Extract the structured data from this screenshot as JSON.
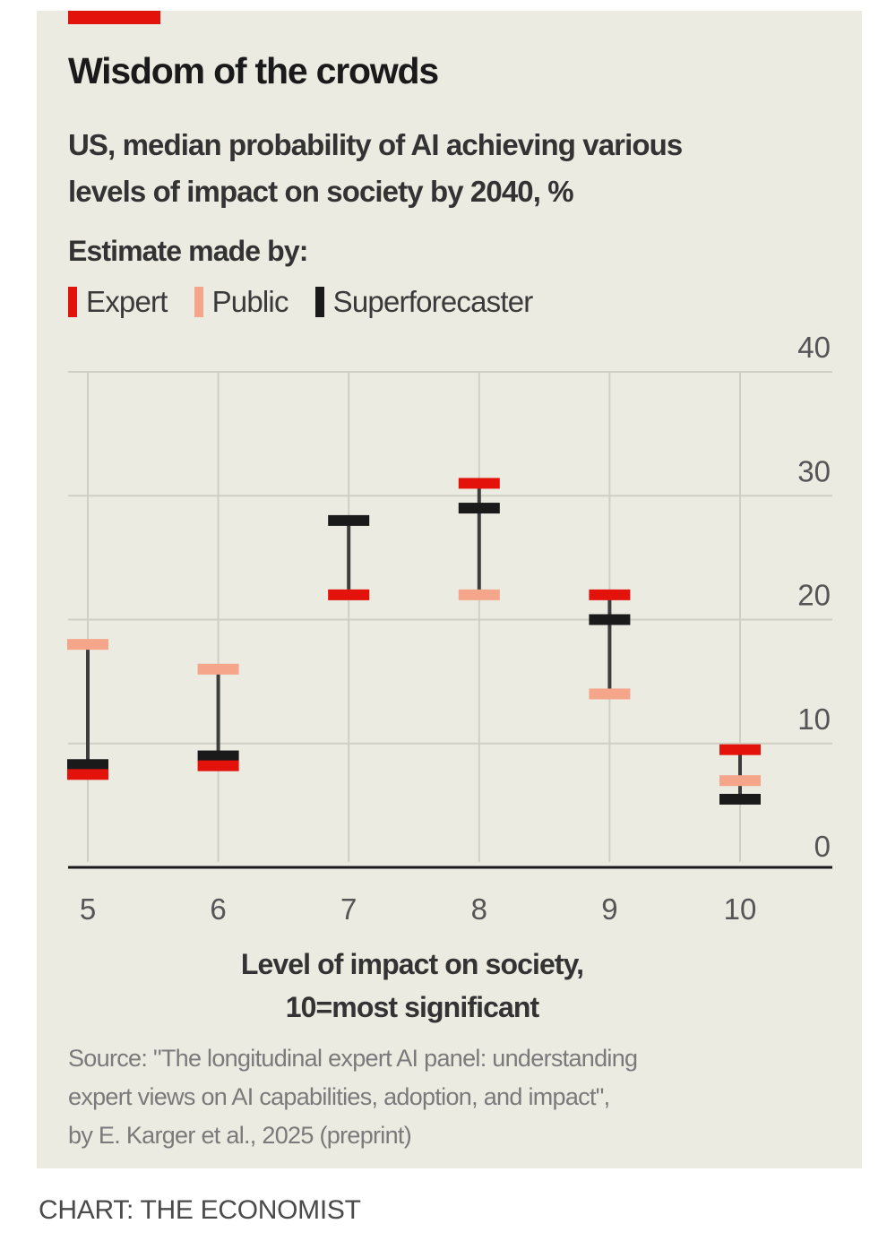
{
  "header": {
    "title": "Wisdom of the crowds",
    "subtitle_line1": "US, median probability of AI achieving various",
    "subtitle_line2": "levels of impact on society by 2040, %",
    "accent_color": "#e3120b"
  },
  "legend": {
    "title": "Estimate made by:",
    "items": [
      {
        "label": "Expert",
        "color": "#e3120b"
      },
      {
        "label": "Public",
        "color": "#f4a58a"
      },
      {
        "label": "Superforecaster",
        "color": "#1a1a1a"
      }
    ]
  },
  "footer": {
    "source_line1": "Source: \"The longitudinal expert AI panel: understanding",
    "source_line2": "expert views on AI capabilities, adoption, and impact\",",
    "source_line3": "by E. Karger et al., 2025 (preprint)",
    "credit": "CHART: THE ECONOMIST"
  },
  "chart_data": {
    "type": "dot-range",
    "title": "Wisdom of the crowds",
    "subtitle": "US, median probability of AI achieving various levels of impact on society by 2040, %",
    "xlabel_line1": "Level of impact on society,",
    "xlabel_line2": "10=most significant",
    "ylabel": "%",
    "categories": [
      "5",
      "6",
      "7",
      "8",
      "9",
      "10"
    ],
    "ylim": [
      0,
      40
    ],
    "yticks": [
      "0",
      "10",
      "20",
      "30",
      "40"
    ],
    "y_axis_position": "right",
    "grid": true,
    "legend_position": "top-left",
    "series": [
      {
        "name": "Expert",
        "color": "#e3120b",
        "values": [
          7.5,
          8.2,
          22,
          31,
          22,
          9.5
        ]
      },
      {
        "name": "Public",
        "color": "#f4a58a",
        "values": [
          18,
          16,
          22,
          22,
          14,
          7
        ]
      },
      {
        "name": "Superforecaster",
        "color": "#1a1a1a",
        "values": [
          8.3,
          9,
          28,
          29,
          20,
          5.5
        ]
      }
    ]
  }
}
